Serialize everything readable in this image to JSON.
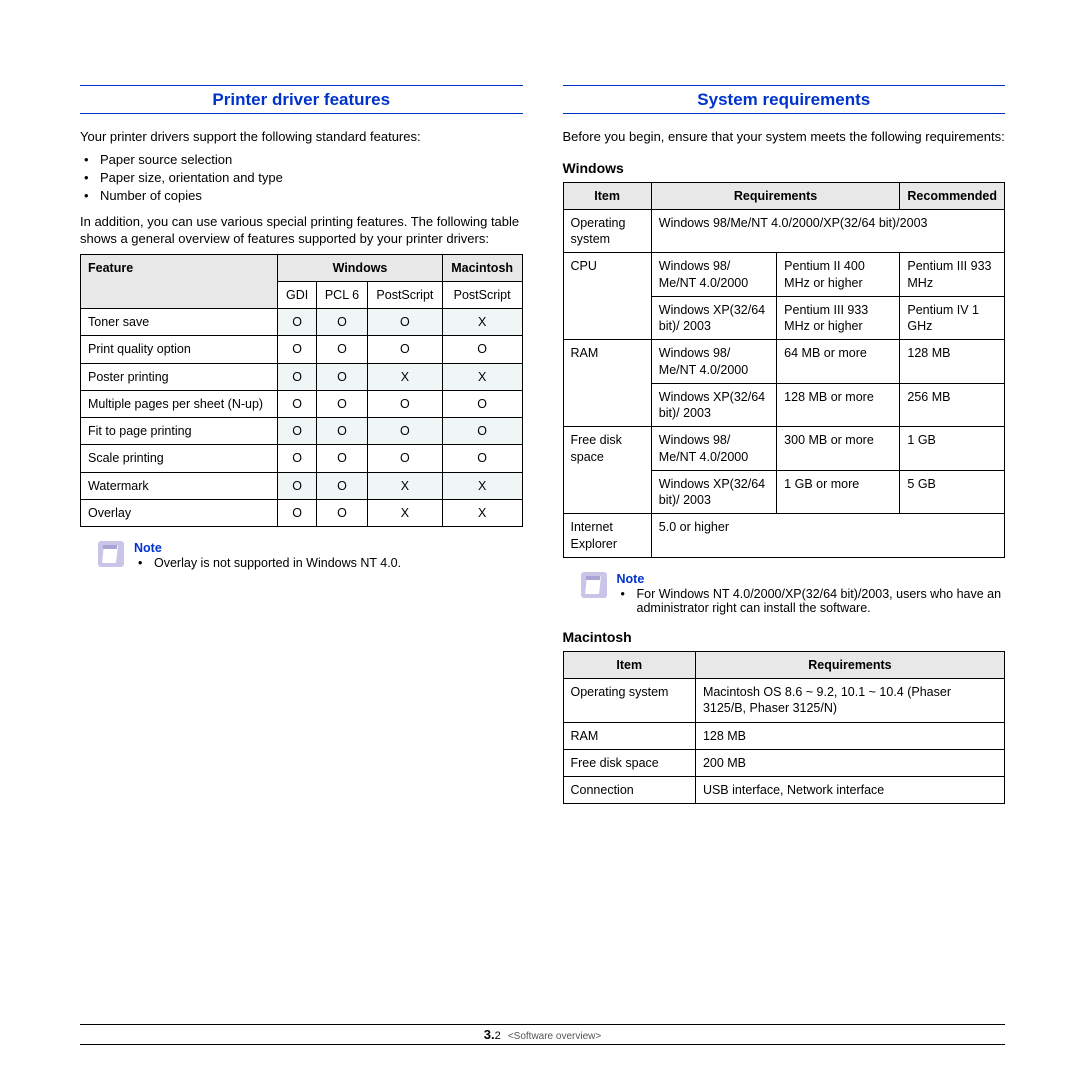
{
  "colors": {
    "heading": "#0033cc",
    "rule": "#0033cc",
    "table_border": "#000000",
    "th_bg": "#e8e8e8",
    "tint_bg": "#f0f6f6",
    "note_icon_bg": "#c9c5e8",
    "text": "#000000"
  },
  "typography": {
    "body_pt": 13,
    "heading_pt": 17,
    "subheading_pt": 14,
    "table_pt": 12.5,
    "footer_pt": 11
  },
  "left": {
    "heading": "Printer driver features",
    "intro": "Your printer drivers support the following standard features:",
    "bullets": [
      "Paper source selection",
      "Paper size, orientation and type",
      "Number of copies"
    ],
    "post_bullets": "In addition, you can use various special printing features. The following table shows a general overview of features supported by your printer drivers:",
    "features_table": {
      "header_top": {
        "feature": "Feature",
        "windows": "Windows",
        "mac": "Macintosh"
      },
      "header_sub": {
        "gdi": "GDI",
        "pcl6": "PCL 6",
        "ps": "PostScript",
        "mac_ps": "PostScript"
      },
      "rows": [
        {
          "feature": "Toner save",
          "gdi": "O",
          "pcl6": "O",
          "ps": "O",
          "mac": "X",
          "tint": true
        },
        {
          "feature": "Print quality option",
          "gdi": "O",
          "pcl6": "O",
          "ps": "O",
          "mac": "O",
          "tint": false
        },
        {
          "feature": "Poster printing",
          "gdi": "O",
          "pcl6": "O",
          "ps": "X",
          "mac": "X",
          "tint": true
        },
        {
          "feature": "Multiple pages per sheet (N-up)",
          "gdi": "O",
          "pcl6": "O",
          "ps": "O",
          "mac": "O",
          "tint": false
        },
        {
          "feature": "Fit to page printing",
          "gdi": "O",
          "pcl6": "O",
          "ps": "O",
          "mac": "O",
          "tint": true
        },
        {
          "feature": "Scale printing",
          "gdi": "O",
          "pcl6": "O",
          "ps": "O",
          "mac": "O",
          "tint": false
        },
        {
          "feature": "Watermark",
          "gdi": "O",
          "pcl6": "O",
          "ps": "X",
          "mac": "X",
          "tint": true
        },
        {
          "feature": "Overlay",
          "gdi": "O",
          "pcl6": "O",
          "ps": "X",
          "mac": "X",
          "tint": false
        }
      ]
    },
    "note": {
      "title": "Note",
      "items": [
        "Overlay is not supported in Windows NT 4.0."
      ]
    }
  },
  "right": {
    "heading": "System requirements",
    "intro": "Before you begin, ensure that your system meets the following requirements:",
    "windows_heading": "Windows",
    "win_table": {
      "columns": {
        "item": "Item",
        "req": "Requirements",
        "rec": "Recommended"
      },
      "rows": [
        {
          "item": "Operating system",
          "os_full": "Windows 98/Me/NT 4.0/2000/XP(32/64 bit)/2003",
          "type": "os"
        },
        {
          "item": "CPU",
          "type": "split2",
          "sub": [
            {
              "a": "Windows 98/ Me/NT 4.0/2000",
              "b": "Pentium II 400 MHz or higher",
              "c": "Pentium III 933 MHz"
            },
            {
              "a": "Windows XP(32/64 bit)/ 2003",
              "b": "Pentium III 933 MHz or higher",
              "c": "Pentium IV 1 GHz"
            }
          ]
        },
        {
          "item": "RAM",
          "type": "split2",
          "sub": [
            {
              "a": "Windows 98/ Me/NT 4.0/2000",
              "b": "64 MB or more",
              "c": "128 MB"
            },
            {
              "a": "Windows XP(32/64 bit)/ 2003",
              "b": "128 MB or more",
              "c": "256 MB"
            }
          ]
        },
        {
          "item": "Free disk space",
          "type": "split2",
          "sub": [
            {
              "a": "Windows 98/ Me/NT 4.0/2000",
              "b": "300 MB or more",
              "c": "1 GB"
            },
            {
              "a": "Windows XP(32/64 bit)/ 2003",
              "b": "1 GB or more",
              "c": "5 GB"
            }
          ]
        },
        {
          "item": "Internet Explorer",
          "type": "single",
          "val": "5.0 or higher"
        }
      ]
    },
    "note": {
      "title": "Note",
      "items": [
        "For Windows NT 4.0/2000/XP(32/64 bit)/2003, users who have an administrator right can install the software."
      ]
    },
    "mac_heading": "Macintosh",
    "mac_table": {
      "columns": {
        "item": "Item",
        "req": "Requirements"
      },
      "rows": [
        {
          "item": "Operating system",
          "req": "Macintosh OS 8.6 ~ 9.2, 10.1 ~ 10.4 (Phaser 3125/B, Phaser 3125/N)"
        },
        {
          "item": "RAM",
          "req": "128 MB"
        },
        {
          "item": "Free disk space",
          "req": "200 MB"
        },
        {
          "item": "Connection",
          "req": "USB interface, Network interface"
        }
      ]
    }
  },
  "footer": {
    "chapter": "3.",
    "page": "2",
    "label": "<Software overview>"
  }
}
